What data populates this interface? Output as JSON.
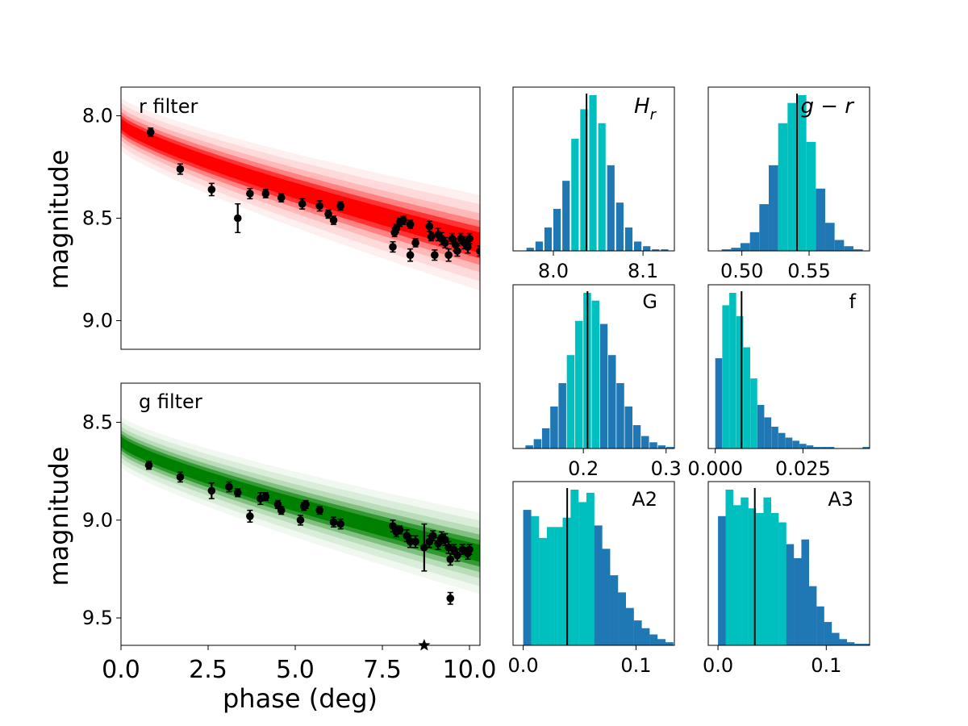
{
  "chart_data": [
    {
      "type": "scatter",
      "id": "r_panel",
      "annotation": "r filter",
      "ylabel": "magnitude",
      "xlabel": "",
      "xlim": [
        0,
        10.3
      ],
      "ylim": [
        9.14,
        7.86
      ],
      "yticks": [
        8.0,
        8.5,
        9.0
      ],
      "ytick_labels": [
        "8.0",
        "8.5",
        "9.0"
      ],
      "fit_color": "#ff0000",
      "fit_band": {
        "center_at_0": 8.04,
        "center_at_max": 8.62,
        "halfwidth_at_0": 0.05,
        "halfwidth_at_max": 0.09
      },
      "points": [
        {
          "x": 0.85,
          "y": 8.08,
          "err": 0.02
        },
        {
          "x": 1.7,
          "y": 8.26,
          "err": 0.025
        },
        {
          "x": 2.6,
          "y": 8.36,
          "err": 0.03
        },
        {
          "x": 3.35,
          "y": 8.5,
          "err": 0.07
        },
        {
          "x": 3.7,
          "y": 8.38,
          "err": 0.025
        },
        {
          "x": 4.15,
          "y": 8.38,
          "err": 0.02
        },
        {
          "x": 4.6,
          "y": 8.4,
          "err": 0.02
        },
        {
          "x": 5.2,
          "y": 8.43,
          "err": 0.025
        },
        {
          "x": 5.7,
          "y": 8.44,
          "err": 0.025
        },
        {
          "x": 5.95,
          "y": 8.48,
          "err": 0.02
        },
        {
          "x": 6.1,
          "y": 8.51,
          "err": 0.02
        },
        {
          "x": 6.3,
          "y": 8.44,
          "err": 0.02
        },
        {
          "x": 7.8,
          "y": 8.64,
          "err": 0.025
        },
        {
          "x": 7.85,
          "y": 8.57,
          "err": 0.02
        },
        {
          "x": 7.9,
          "y": 8.55,
          "err": 0.02
        },
        {
          "x": 8.0,
          "y": 8.52,
          "err": 0.02
        },
        {
          "x": 8.1,
          "y": 8.51,
          "err": 0.02
        },
        {
          "x": 8.3,
          "y": 8.53,
          "err": 0.02
        },
        {
          "x": 8.3,
          "y": 8.68,
          "err": 0.03
        },
        {
          "x": 8.45,
          "y": 8.62,
          "err": 0.02
        },
        {
          "x": 8.85,
          "y": 8.54,
          "err": 0.025
        },
        {
          "x": 8.9,
          "y": 8.59,
          "err": 0.02
        },
        {
          "x": 9.0,
          "y": 8.68,
          "err": 0.025
        },
        {
          "x": 9.1,
          "y": 8.58,
          "err": 0.03
        },
        {
          "x": 9.2,
          "y": 8.6,
          "err": 0.03
        },
        {
          "x": 9.3,
          "y": 8.62,
          "err": 0.025
        },
        {
          "x": 9.4,
          "y": 8.68,
          "err": 0.03
        },
        {
          "x": 9.5,
          "y": 8.6,
          "err": 0.025
        },
        {
          "x": 9.6,
          "y": 8.63,
          "err": 0.03
        },
        {
          "x": 9.65,
          "y": 8.66,
          "err": 0.025
        },
        {
          "x": 9.75,
          "y": 8.6,
          "err": 0.025
        },
        {
          "x": 9.85,
          "y": 8.62,
          "err": 0.03
        },
        {
          "x": 9.95,
          "y": 8.64,
          "err": 0.03
        },
        {
          "x": 10.0,
          "y": 8.6,
          "err": 0.025
        },
        {
          "x": 10.3,
          "y": 8.66,
          "err": 0.025
        }
      ]
    },
    {
      "type": "scatter",
      "id": "g_panel",
      "annotation": "g filter",
      "ylabel": "magnitude",
      "xlabel": "phase (deg)",
      "xlim": [
        0,
        10.3
      ],
      "xticks": [
        0.0,
        2.5,
        5.0,
        7.5,
        10.0
      ],
      "xtick_labels": [
        "0.0",
        "2.5",
        "5.0",
        "7.5",
        "10.0"
      ],
      "ylim": [
        9.64,
        8.3
      ],
      "yticks": [
        8.5,
        9.0,
        9.5
      ],
      "ytick_labels": [
        "8.5",
        "9.0",
        "9.5"
      ],
      "fit_color": "#008000",
      "fit_band": {
        "center_at_0": 8.6,
        "center_at_max": 9.17,
        "halfwidth_at_0": 0.05,
        "halfwidth_at_max": 0.08
      },
      "points": [
        {
          "x": 0.8,
          "y": 8.72,
          "err": 0.02
        },
        {
          "x": 1.7,
          "y": 8.78,
          "err": 0.025
        },
        {
          "x": 2.6,
          "y": 8.85,
          "err": 0.04
        },
        {
          "x": 3.1,
          "y": 8.83,
          "err": 0.025
        },
        {
          "x": 3.35,
          "y": 8.86,
          "err": 0.02
        },
        {
          "x": 3.7,
          "y": 8.98,
          "err": 0.03
        },
        {
          "x": 4.0,
          "y": 8.89,
          "err": 0.03
        },
        {
          "x": 4.15,
          "y": 8.88,
          "err": 0.02
        },
        {
          "x": 4.5,
          "y": 8.92,
          "err": 0.02
        },
        {
          "x": 4.6,
          "y": 8.95,
          "err": 0.02
        },
        {
          "x": 5.15,
          "y": 9.0,
          "err": 0.025
        },
        {
          "x": 5.25,
          "y": 8.93,
          "err": 0.02
        },
        {
          "x": 5.3,
          "y": 8.92,
          "err": 0.02
        },
        {
          "x": 5.7,
          "y": 8.95,
          "err": 0.02
        },
        {
          "x": 6.1,
          "y": 9.01,
          "err": 0.025
        },
        {
          "x": 6.3,
          "y": 9.02,
          "err": 0.025
        },
        {
          "x": 7.8,
          "y": 9.03,
          "err": 0.03
        },
        {
          "x": 7.9,
          "y": 9.06,
          "err": 0.025
        },
        {
          "x": 8.0,
          "y": 9.05,
          "err": 0.02
        },
        {
          "x": 8.2,
          "y": 9.08,
          "err": 0.03
        },
        {
          "x": 8.3,
          "y": 9.11,
          "err": 0.03
        },
        {
          "x": 8.45,
          "y": 9.11,
          "err": 0.03
        },
        {
          "x": 8.7,
          "y": 9.14,
          "err": 0.12
        },
        {
          "x": 8.85,
          "y": 9.11,
          "err": 0.03
        },
        {
          "x": 8.95,
          "y": 9.08,
          "err": 0.025
        },
        {
          "x": 9.1,
          "y": 9.12,
          "err": 0.03
        },
        {
          "x": 9.2,
          "y": 9.09,
          "err": 0.03
        },
        {
          "x": 9.3,
          "y": 9.1,
          "err": 0.03
        },
        {
          "x": 9.4,
          "y": 9.14,
          "err": 0.03
        },
        {
          "x": 9.45,
          "y": 9.2,
          "err": 0.03
        },
        {
          "x": 9.55,
          "y": 9.15,
          "err": 0.025
        },
        {
          "x": 9.65,
          "y": 9.18,
          "err": 0.03
        },
        {
          "x": 9.8,
          "y": 9.15,
          "err": 0.025
        },
        {
          "x": 9.95,
          "y": 9.17,
          "err": 0.03
        },
        {
          "x": 10.0,
          "y": 9.15,
          "err": 0.025
        },
        {
          "x": 9.45,
          "y": 9.4,
          "err": 0.03
        }
      ],
      "star_point": {
        "x": 8.7,
        "y": 9.64
      }
    },
    {
      "type": "histogram",
      "id": "Hr",
      "label": "H_r",
      "xlim": [
        7.955,
        8.135
      ],
      "xticks": [
        8.0,
        8.1
      ],
      "xtick_labels": [
        "8.0",
        "8.1"
      ],
      "bins": [
        7.97,
        7.98,
        7.99,
        8.0,
        8.01,
        8.02,
        8.03,
        8.04,
        8.05,
        8.06,
        8.07,
        8.08,
        8.09,
        8.1,
        8.11,
        8.12
      ],
      "counts": [
        2,
        6,
        15,
        27,
        45,
        72,
        91,
        100,
        82,
        55,
        31,
        15,
        6,
        3,
        1,
        1
      ],
      "bin_width": 0.008,
      "central_range": [
        8.015,
        8.055
      ],
      "median": 8.037
    },
    {
      "type": "histogram",
      "id": "g_minus_r",
      "label": "g − r",
      "xlim": [
        0.475,
        0.595
      ],
      "xticks": [
        0.5,
        0.55
      ],
      "xtick_labels": [
        "0.50",
        "0.55"
      ],
      "bins": [
        0.485,
        0.492,
        0.499,
        0.506,
        0.513,
        0.52,
        0.527,
        0.534,
        0.541,
        0.548,
        0.555,
        0.562,
        0.569,
        0.576,
        0.583
      ],
      "counts": [
        1,
        2,
        5,
        12,
        30,
        55,
        82,
        95,
        100,
        70,
        40,
        18,
        7,
        3,
        1
      ],
      "bin_width": 0.0068,
      "central_range": [
        0.527,
        0.555
      ],
      "median": 0.541
    },
    {
      "type": "histogram",
      "id": "G",
      "label": "G",
      "xlim": [
        0.115,
        0.31
      ],
      "xticks": [
        0.2,
        0.3
      ],
      "xtick_labels": [
        "0.2",
        "0.3"
      ],
      "bins": [
        0.13,
        0.14,
        0.15,
        0.16,
        0.17,
        0.18,
        0.19,
        0.2,
        0.21,
        0.22,
        0.23,
        0.24,
        0.25,
        0.26,
        0.27,
        0.28,
        0.29,
        0.3
      ],
      "counts": [
        2,
        6,
        13,
        27,
        42,
        60,
        82,
        100,
        95,
        80,
        60,
        42,
        27,
        15,
        8,
        4,
        2,
        1
      ],
      "bin_width": 0.009,
      "central_range": [
        0.177,
        0.224
      ],
      "median": 0.205
    },
    {
      "type": "histogram",
      "id": "f",
      "label": "f",
      "xlim": [
        -0.002,
        0.044
      ],
      "xticks": [
        0.0,
        0.025
      ],
      "xtick_labels": [
        "0.000",
        "0.025"
      ],
      "bins": [
        0.0,
        0.002,
        0.004,
        0.006,
        0.008,
        0.01,
        0.012,
        0.014,
        0.016,
        0.018,
        0.02,
        0.022,
        0.024,
        0.026,
        0.028,
        0.03,
        0.032,
        0.034,
        0.036,
        0.038,
        0.04,
        0.042
      ],
      "counts": [
        58,
        92,
        100,
        85,
        65,
        45,
        28,
        20,
        14,
        10,
        7,
        5,
        3,
        2,
        1,
        1,
        1,
        0,
        0,
        0,
        0,
        1
      ],
      "bin_width": 0.0019,
      "central_range": [
        0.002,
        0.012
      ],
      "median": 0.0075
    },
    {
      "type": "histogram",
      "id": "A2",
      "label": "A2",
      "xlim": [
        -0.009,
        0.134
      ],
      "xticks": [
        0.0,
        0.1
      ],
      "xtick_labels": [
        "0.0",
        "0.1"
      ],
      "bins": [
        0.0,
        0.007,
        0.014,
        0.021,
        0.028,
        0.035,
        0.042,
        0.049,
        0.056,
        0.063,
        0.07,
        0.077,
        0.084,
        0.091,
        0.098,
        0.105,
        0.112,
        0.119,
        0.126
      ],
      "counts": [
        87,
        83,
        69,
        76,
        76,
        82,
        100,
        92,
        98,
        77,
        62,
        45,
        34,
        24,
        16,
        11,
        7,
        4,
        2
      ],
      "bin_width": 0.0069,
      "central_range": [
        0.009,
        0.063
      ],
      "median": 0.039
    },
    {
      "type": "histogram",
      "id": "A3",
      "label": "A3",
      "xlim": [
        -0.009,
        0.14
      ],
      "xticks": [
        0.0,
        0.1
      ],
      "xtick_labels": [
        "0.0",
        "0.1"
      ],
      "bins": [
        0.0,
        0.007,
        0.014,
        0.021,
        0.028,
        0.035,
        0.042,
        0.049,
        0.056,
        0.063,
        0.07,
        0.077,
        0.084,
        0.091,
        0.098,
        0.105,
        0.112,
        0.119,
        0.126,
        0.133
      ],
      "counts": [
        83,
        100,
        90,
        95,
        88,
        85,
        95,
        85,
        79,
        65,
        56,
        68,
        38,
        25,
        15,
        8,
        4,
        2,
        1,
        1
      ],
      "bin_width": 0.0069,
      "central_range": [
        0.007,
        0.06
      ],
      "median": 0.034
    }
  ],
  "colors": {
    "r_fit": "#ff0000",
    "g_fit": "#008000",
    "hist_outer": "#1f77b4",
    "hist_inner": "#00bfbf",
    "marker": "#000000"
  }
}
